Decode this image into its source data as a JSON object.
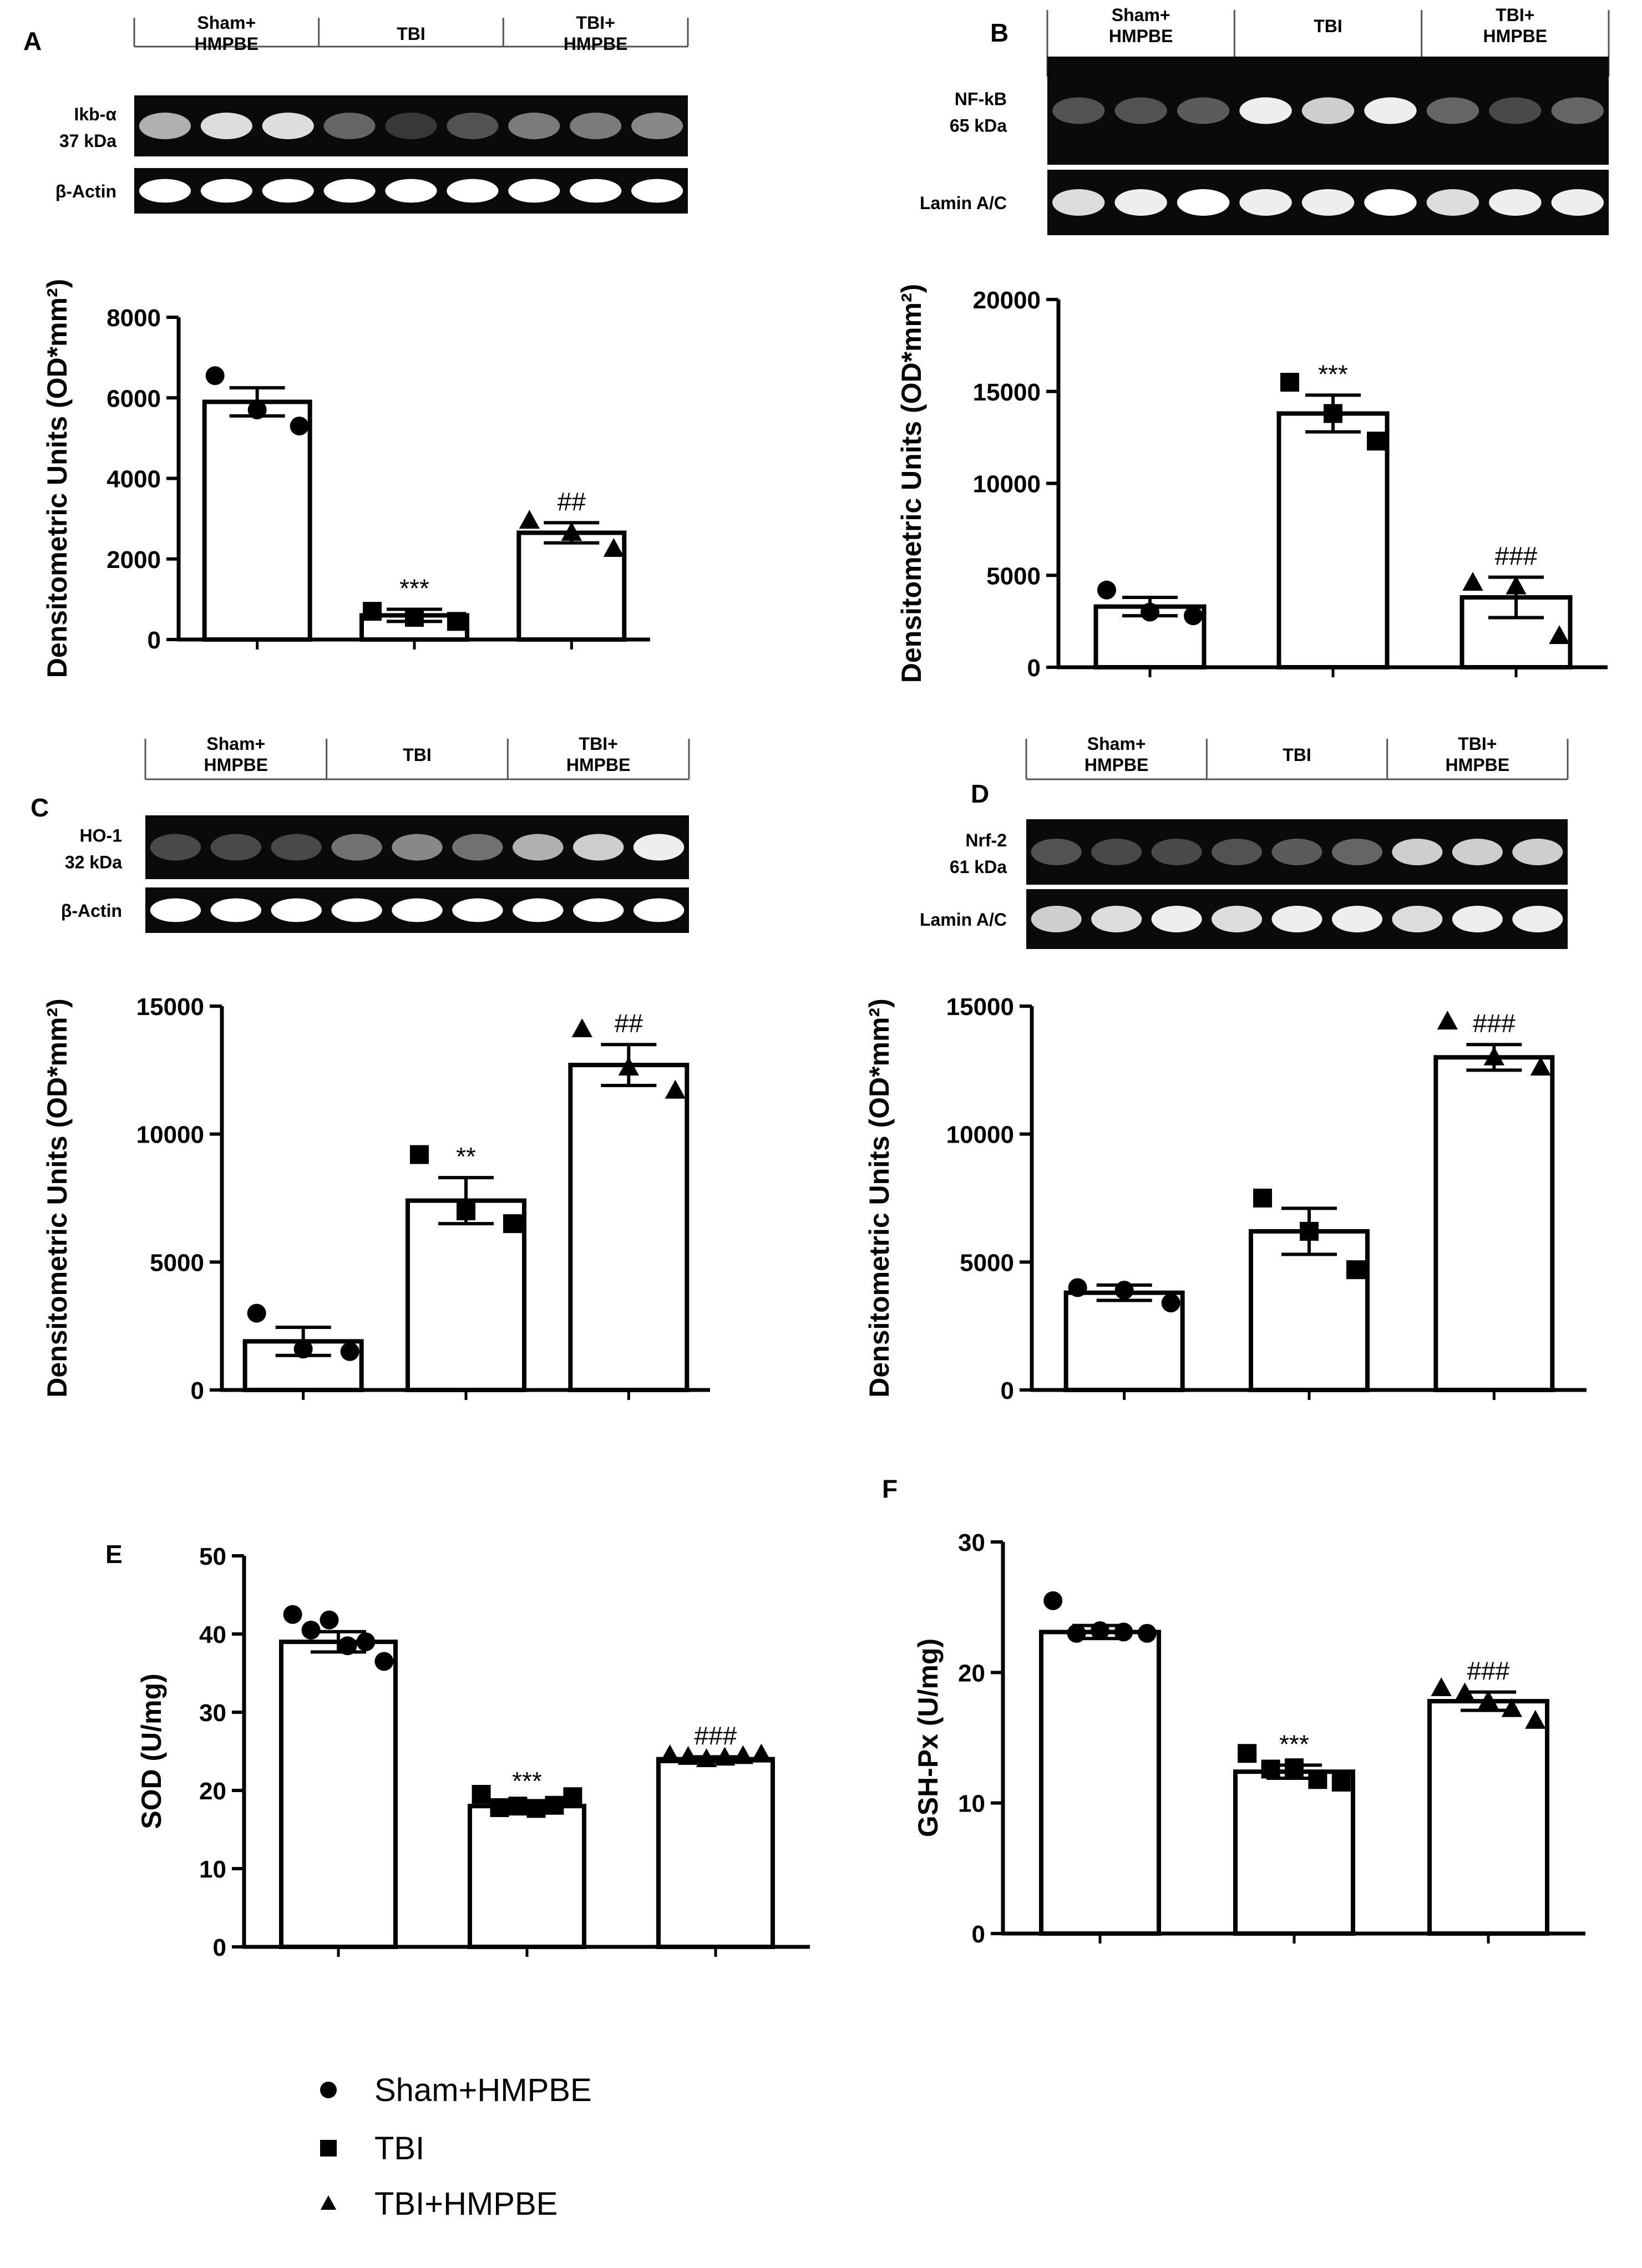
{
  "figure": {
    "panels": [
      {
        "id": "A",
        "letter": "A",
        "blot": {
          "groups": [
            "Sham+\nHMPBE",
            "TBI",
            "TBI+\nHMPBE"
          ],
          "rows": [
            {
              "label": "Ikb-α\n37 kDa",
              "intensities": [
                0.75,
                0.9,
                0.9,
                0.45,
                0.2,
                0.35,
                0.55,
                0.55,
                0.6
              ]
            },
            {
              "label": "β-Actin",
              "intensities": [
                1,
                1,
                1,
                1,
                1,
                1,
                1,
                1,
                1
              ]
            }
          ]
        }
      },
      {
        "id": "B",
        "letter": "B",
        "blot": {
          "groups": [
            "Sham+\nHMPBE",
            "TBI",
            "TBI+\nHMPBE"
          ],
          "rows": [
            {
              "label": "NF-kB\n65 kDa",
              "intensities": [
                0.35,
                0.35,
                0.4,
                0.95,
                0.85,
                0.95,
                0.45,
                0.3,
                0.45
              ]
            },
            {
              "label": "Lamin A/C",
              "intensities": [
                0.9,
                0.95,
                1,
                0.95,
                0.95,
                1,
                0.9,
                0.95,
                0.95
              ]
            }
          ]
        }
      },
      {
        "id": "C",
        "letter": "C",
        "blot": {
          "groups": [
            "Sham+\nHMPBE",
            "TBI",
            "TBI+\nHMPBE"
          ],
          "rows": [
            {
              "label": "HO-1\n32 kDa",
              "intensities": [
                0.3,
                0.3,
                0.3,
                0.5,
                0.6,
                0.5,
                0.75,
                0.85,
                0.95
              ]
            },
            {
              "label": "β-Actin",
              "intensities": [
                1,
                1,
                1,
                1,
                1,
                1,
                1,
                1,
                1
              ]
            }
          ]
        }
      },
      {
        "id": "D",
        "letter": "D",
        "blot": {
          "groups": [
            "Sham+\nHMPBE",
            "TBI",
            "TBI+\nHMPBE"
          ],
          "rows": [
            {
              "label": "Nrf-2\n61 kDa",
              "intensities": [
                0.35,
                0.3,
                0.3,
                0.35,
                0.4,
                0.45,
                0.85,
                0.85,
                0.85
              ]
            },
            {
              "label": "Lamin A/C",
              "intensities": [
                0.85,
                0.9,
                0.95,
                0.9,
                0.95,
                0.95,
                0.9,
                0.95,
                0.95
              ]
            }
          ]
        }
      },
      {
        "id": "E",
        "letter": "E"
      },
      {
        "id": "F",
        "letter": "F"
      }
    ],
    "legend": [
      {
        "marker": "circle",
        "label": "Sham+HMPBE"
      },
      {
        "marker": "square",
        "label": "TBI"
      },
      {
        "marker": "triangle",
        "label": "TBI+HMPBE"
      }
    ]
  },
  "chart_data": [
    {
      "panel": "A",
      "type": "bar",
      "title": "",
      "xlabel": "",
      "ylabel": "Densitometric Units (OD*mm²)",
      "ylim": [
        0,
        8000
      ],
      "yticks": [
        0,
        2000,
        4000,
        6000,
        8000
      ],
      "categories": [
        "Sham+HMPBE",
        "TBI",
        "TBI+HMPBE"
      ],
      "values": [
        5900,
        600,
        2650
      ],
      "sem": [
        350,
        150,
        250
      ],
      "points": [
        [
          6550,
          5700,
          5300
        ],
        [
          700,
          550,
          450
        ],
        [
          2950,
          2650,
          2250
        ]
      ],
      "annotations": [
        "",
        "***",
        "##"
      ],
      "grid": false
    },
    {
      "panel": "B",
      "type": "bar",
      "title": "",
      "xlabel": "",
      "ylabel": "Densitometric Units (OD*mm²)",
      "ylim": [
        0,
        20000
      ],
      "yticks": [
        0,
        5000,
        10000,
        15000,
        20000
      ],
      "categories": [
        "Sham+HMPBE",
        "TBI",
        "TBI+HMPBE"
      ],
      "values": [
        3300,
        13800,
        3800
      ],
      "sem": [
        500,
        1000,
        1100
      ],
      "points": [
        [
          4200,
          3000,
          2800
        ],
        [
          15500,
          13800,
          12300
        ],
        [
          4600,
          4400,
          1700
        ]
      ],
      "annotations": [
        "",
        "***",
        "###"
      ],
      "grid": false
    },
    {
      "panel": "C",
      "type": "bar",
      "title": "",
      "xlabel": "",
      "ylabel": "Densitometric Units (OD*mm²)",
      "ylim": [
        0,
        15000
      ],
      "yticks": [
        0,
        5000,
        10000,
        15000
      ],
      "categories": [
        "Sham+HMPBE",
        "TBI",
        "TBI+HMPBE"
      ],
      "values": [
        1900,
        7400,
        12700
      ],
      "sem": [
        550,
        900,
        800
      ],
      "points": [
        [
          3000,
          1600,
          1500
        ],
        [
          9200,
          7000,
          6500
        ],
        [
          14100,
          12600,
          11700
        ]
      ],
      "annotations": [
        "",
        "**",
        "##"
      ],
      "grid": false
    },
    {
      "panel": "D",
      "type": "bar",
      "title": "",
      "xlabel": "",
      "ylabel": "Densitometric Units (OD*mm²)",
      "ylim": [
        0,
        15000
      ],
      "yticks": [
        0,
        5000,
        10000,
        15000
      ],
      "categories": [
        "Sham+HMPBE",
        "TBI",
        "TBI+HMPBE"
      ],
      "values": [
        3800,
        6200,
        13000
      ],
      "sem": [
        300,
        900,
        500
      ],
      "points": [
        [
          4000,
          3900,
          3400
        ],
        [
          7500,
          6200,
          4700
        ],
        [
          14400,
          13000,
          12600
        ]
      ],
      "annotations": [
        "",
        "",
        "###"
      ],
      "grid": false
    },
    {
      "panel": "E",
      "type": "bar",
      "title": "",
      "xlabel": "",
      "ylabel": "SOD (U/mg)",
      "ylim": [
        0,
        50
      ],
      "yticks": [
        0,
        10,
        20,
        30,
        40,
        50
      ],
      "categories": [
        "Sham+HMPBE",
        "TBI",
        "TBI+HMPBE"
      ],
      "values": [
        39,
        18,
        24
      ],
      "sem": [
        1.3,
        0.5,
        0.3
      ],
      "points": [
        [
          42.5,
          40.5,
          41.8,
          38.5,
          39,
          36.5
        ],
        [
          19.5,
          17.8,
          18,
          17.7,
          18.1,
          19.2
        ],
        [
          24.5,
          24.3,
          24,
          24.2,
          24.4,
          24.6
        ]
      ],
      "annotations": [
        "",
        "***",
        "###"
      ],
      "grid": false
    },
    {
      "panel": "F",
      "type": "bar",
      "title": "",
      "xlabel": "",
      "ylabel": "GSH-Px (U/mg)",
      "ylim": [
        0,
        30
      ],
      "yticks": [
        0,
        10,
        20,
        30
      ],
      "categories": [
        "Sham+HMPBE",
        "TBI",
        "TBI+HMPBE"
      ],
      "values": [
        23.1,
        12.4,
        17.8
      ],
      "sem": [
        0.5,
        0.5,
        0.7
      ],
      "points": [
        [
          25.5,
          23,
          23.2,
          23.1,
          23
        ],
        [
          13.8,
          12.6,
          12.7,
          11.8,
          11.6
        ],
        [
          18.8,
          18.4,
          17.8,
          17.2,
          16.3
        ]
      ],
      "annotations": [
        "",
        "***",
        "###"
      ],
      "grid": false
    }
  ]
}
